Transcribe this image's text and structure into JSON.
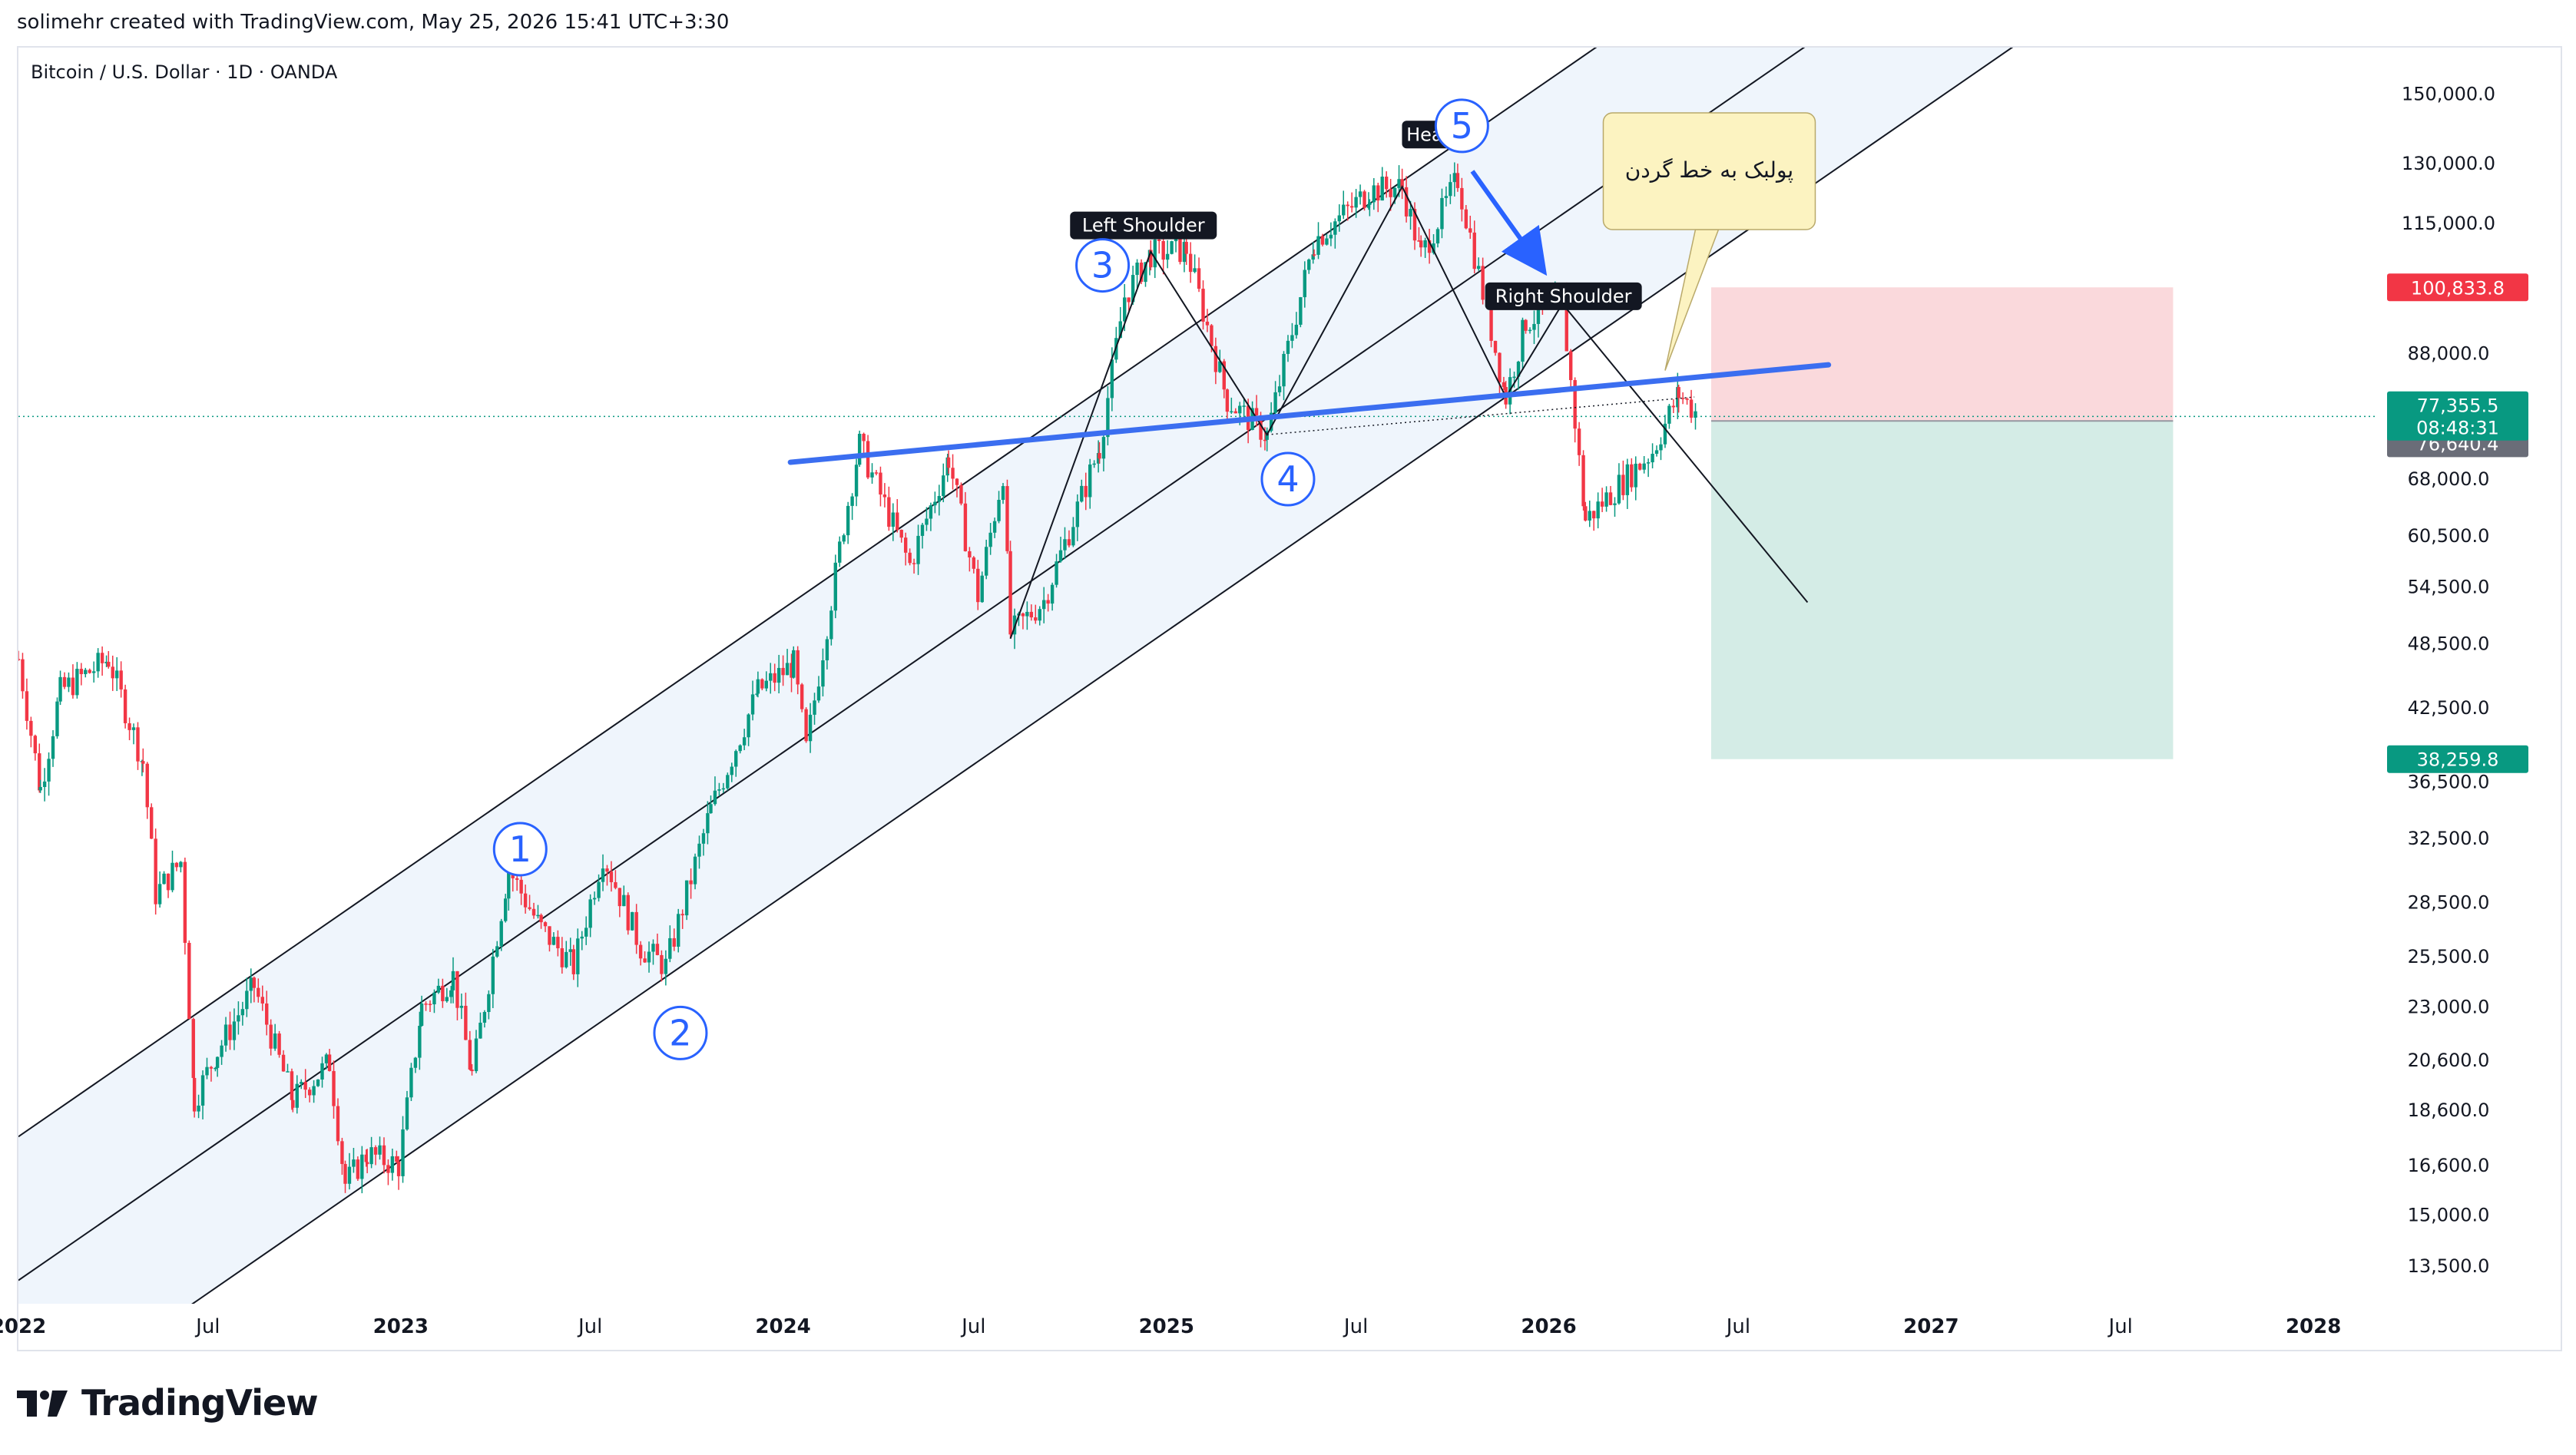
{
  "header": {
    "credit": "solimehr created with TradingView.com, May 25, 2026 15:41 UTC+3:30"
  },
  "symbol": {
    "title": "Bitcoin / U.S. Dollar · 1D · OANDA"
  },
  "footer": {
    "brand": "TradingView"
  },
  "colors": {
    "up": "#089981",
    "down": "#f23645",
    "channel_fill": "#eaf1fb",
    "neckline": "#3b6ef0",
    "wave_label": "#2962ff",
    "stop_zone": "#f9d2d6",
    "target_zone": "#cfeae3",
    "current_tag": "#089981",
    "stop_tag": "#f23645",
    "entry_tag": "#6a6d78",
    "note_bg": "#fcf3c1"
  },
  "chart_data": {
    "type": "candlestick",
    "symbol": "Bitcoin / U.S. Dollar",
    "timeframe": "1D",
    "y_scale": "log",
    "ylim": [
      12500,
      165000
    ],
    "y_ticks": [
      "150,000.0",
      "130,000.0",
      "115,000.0",
      "88,000.0",
      "68,000.0",
      "60,500.0",
      "54,500.0",
      "48,500.0",
      "42,500.0",
      "36,500.0",
      "32,500.0",
      "28,500.0",
      "25,500.0",
      "23,000.0",
      "20,600.0",
      "18,600.0",
      "16,600.0",
      "15,000.0",
      "13,500.0"
    ],
    "x_ticks": [
      "2022",
      "Jul",
      "2023",
      "Jul",
      "2024",
      "Jul",
      "2025",
      "Jul",
      "2026",
      "Jul",
      "2027",
      "Jul",
      "2028"
    ],
    "x_range": [
      "2022-01-01",
      "2028-03-01"
    ],
    "price_path": [
      [
        "2022-01-01",
        47000
      ],
      [
        "2022-01-22",
        36000
      ],
      [
        "2022-02-10",
        44000
      ],
      [
        "2022-03-28",
        47000
      ],
      [
        "2022-04-30",
        38000
      ],
      [
        "2022-05-12",
        29000
      ],
      [
        "2022-06-05",
        31000
      ],
      [
        "2022-06-18",
        19000
      ],
      [
        "2022-07-10",
        21000
      ],
      [
        "2022-08-14",
        24000
      ],
      [
        "2022-09-20",
        19000
      ],
      [
        "2022-10-25",
        20500
      ],
      [
        "2022-11-09",
        16000
      ],
      [
        "2022-11-30",
        17000
      ],
      [
        "2022-12-30",
        16600
      ],
      [
        "2023-01-21",
        23000
      ],
      [
        "2023-02-20",
        24500
      ],
      [
        "2023-03-10",
        20000
      ],
      [
        "2023-04-14",
        30500
      ],
      [
        "2023-05-15",
        27000
      ],
      [
        "2023-06-15",
        25000
      ],
      [
        "2023-07-13",
        31500
      ],
      [
        "2023-08-18",
        26000
      ],
      [
        "2023-09-11",
        25000
      ],
      [
        "2023-10-24",
        34500
      ],
      [
        "2023-12-08",
        44000
      ],
      [
        "2024-01-11",
        46500
      ],
      [
        "2024-01-23",
        39000
      ],
      [
        "2024-02-28",
        62000
      ],
      [
        "2024-03-14",
        73000
      ],
      [
        "2024-05-01",
        57000
      ],
      [
        "2024-06-07",
        71000
      ],
      [
        "2024-07-05",
        53500
      ],
      [
        "2024-07-29",
        69000
      ],
      [
        "2024-08-05",
        49500
      ],
      [
        "2024-09-06",
        53000
      ],
      [
        "2024-10-29",
        72500
      ],
      [
        "2024-11-22",
        99000
      ],
      [
        "2024-12-17",
        108000
      ],
      [
        "2025-01-20",
        109000
      ],
      [
        "2025-02-28",
        80000
      ],
      [
        "2025-04-07",
        74500
      ],
      [
        "2025-05-22",
        111000
      ],
      [
        "2025-07-14",
        123000
      ],
      [
        "2025-08-14",
        124000
      ],
      [
        "2025-09-01",
        107500
      ],
      [
        "2025-10-06",
        126000
      ],
      [
        "2025-11-21",
        80500
      ],
      [
        "2025-12-10",
        94000
      ],
      [
        "2026-01-14",
        97500
      ],
      [
        "2026-02-05",
        62500
      ],
      [
        "2026-03-01",
        66000
      ],
      [
        "2026-04-10",
        72000
      ],
      [
        "2026-05-05",
        81000
      ],
      [
        "2026-05-25",
        77355
      ]
    ],
    "last_price": "77,355.5",
    "countdown": "08:48:31",
    "entry_price": "76,640.4",
    "stop_price": "100,833.8",
    "target_price": "38,259.8",
    "annotations": {
      "left_shoulder": "Left Shoulder",
      "head": "Head",
      "right_shoulder": "Right Shoulder",
      "note": "پولبک به خط گردن",
      "waves": [
        "1",
        "2",
        "3",
        "4",
        "5"
      ]
    }
  }
}
